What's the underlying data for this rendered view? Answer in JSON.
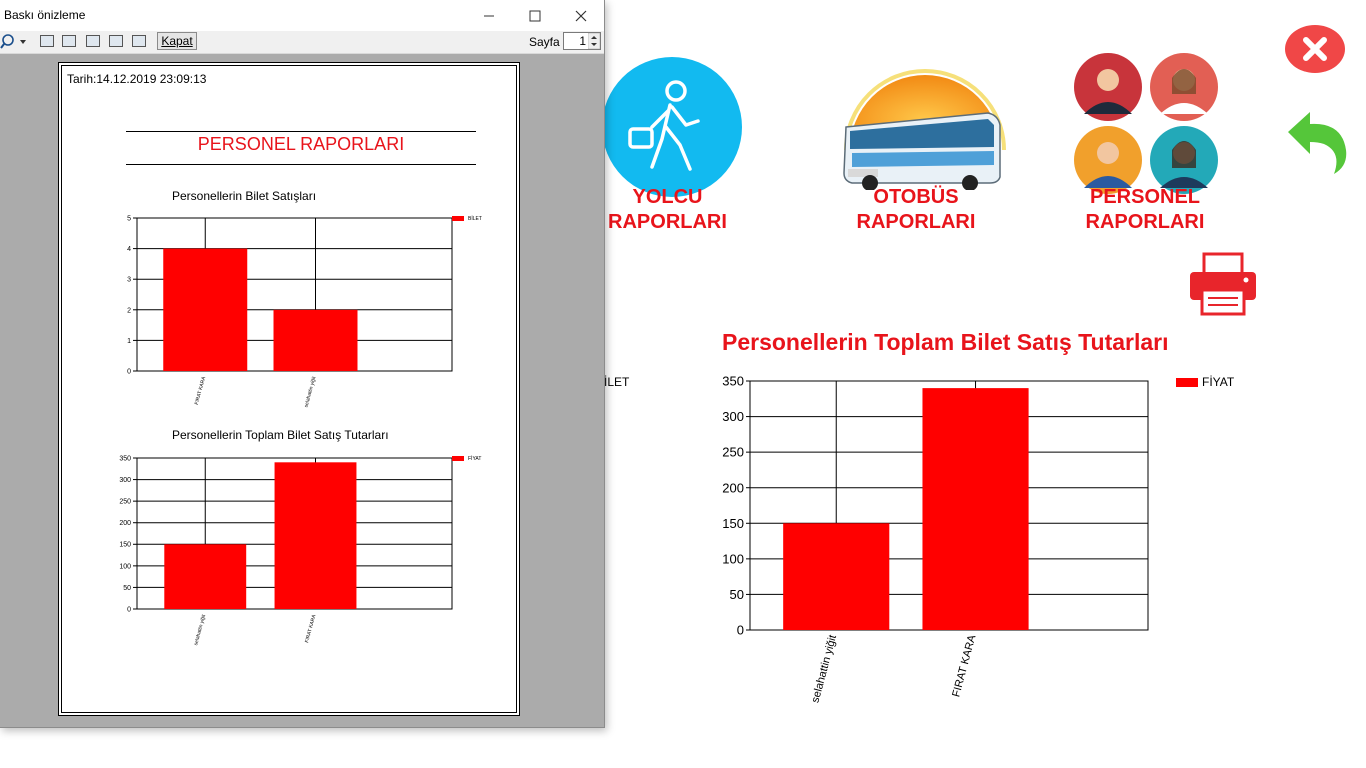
{
  "preview_window": {
    "title": "Baskı önizleme",
    "close_button_label": "Kapat",
    "page_label": "Sayfa",
    "page_value": "1"
  },
  "printed_page": {
    "date_text": "Tarih:14.12.2019 23:09:13",
    "heading": "PERSONEL RAPORLARI",
    "chart1": {
      "title": "Personellerin Bilet Satışları",
      "legend": "BİLET",
      "y_ticks": [
        "0",
        "1",
        "2",
        "3",
        "4",
        "5"
      ],
      "categories": [
        "FIRAT KARA",
        "selahattin yiğit"
      ],
      "values": [
        4,
        2
      ],
      "ylim": [
        0,
        5
      ]
    },
    "chart2": {
      "title": "Personellerin Toplam Bilet Satış Tutarları",
      "legend": "FİYAT",
      "y_ticks": [
        "0",
        "50",
        "100",
        "150",
        "200",
        "250",
        "300",
        "350"
      ],
      "categories": [
        "selahattin yiğit",
        "FIRAT KARA"
      ],
      "values": [
        150,
        340
      ],
      "ylim": [
        0,
        350
      ]
    }
  },
  "app": {
    "menu": {
      "passenger": {
        "line1": "YOLCU",
        "line2": "RAPORLARI"
      },
      "bus": {
        "line1": "OTOBÜS",
        "line2": "RAPORLARI"
      },
      "staff": {
        "line1": "PERSONEL",
        "line2": "RAPORLARI"
      }
    },
    "partial_legend": "BİLET",
    "colors": {
      "accent": "#e8141b",
      "bar": "#ff0000",
      "close_red": "#f04747",
      "back_green": "#55c63a",
      "passenger_blue": "#12baf0"
    }
  },
  "chart_data": {
    "type": "bar",
    "title": "Personellerin Toplam Bilet Satış Tutarları",
    "categories": [
      "selahattin yiğit",
      "FIRAT KARA"
    ],
    "series": [
      {
        "name": "FİYAT",
        "values": [
          150,
          340
        ]
      }
    ],
    "y_ticks": [
      "0",
      "50",
      "100",
      "150",
      "200",
      "250",
      "300",
      "350"
    ],
    "ylim": [
      0,
      350
    ],
    "grid": true,
    "legend_position": "top-right"
  }
}
